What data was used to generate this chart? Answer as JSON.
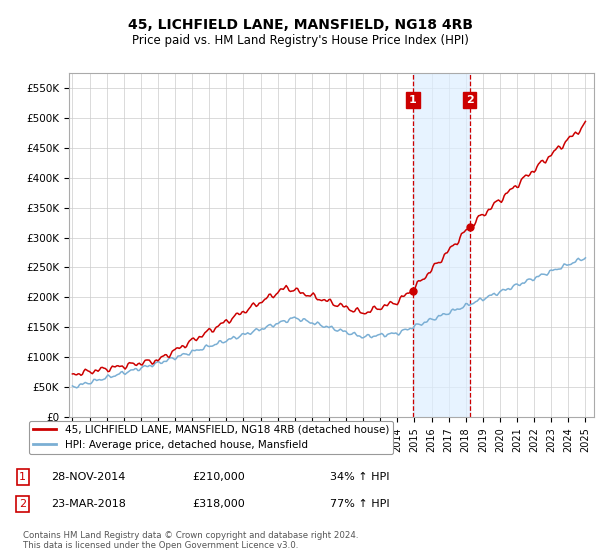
{
  "title": "45, LICHFIELD LANE, MANSFIELD, NG18 4RB",
  "subtitle": "Price paid vs. HM Land Registry's House Price Index (HPI)",
  "ylim": [
    0,
    575000
  ],
  "yticks": [
    0,
    50000,
    100000,
    150000,
    200000,
    250000,
    300000,
    350000,
    400000,
    450000,
    500000,
    550000
  ],
  "sale1_date_num": 2014.91,
  "sale1_price": 210000,
  "sale1_label": "1",
  "sale2_date_num": 2018.23,
  "sale2_price": 318000,
  "sale2_label": "2",
  "red_line_color": "#cc0000",
  "blue_line_color": "#7bafd4",
  "shade_color": "#ddeeff",
  "vline_color": "#cc0000",
  "annotation_box_color": "#cc0000",
  "legend_label_red": "45, LICHFIELD LANE, MANSFIELD, NG18 4RB (detached house)",
  "legend_label_blue": "HPI: Average price, detached house, Mansfield",
  "footer": "Contains HM Land Registry data © Crown copyright and database right 2024.\nThis data is licensed under the Open Government Licence v3.0.",
  "xmin": 1994.8,
  "xmax": 2025.5
}
